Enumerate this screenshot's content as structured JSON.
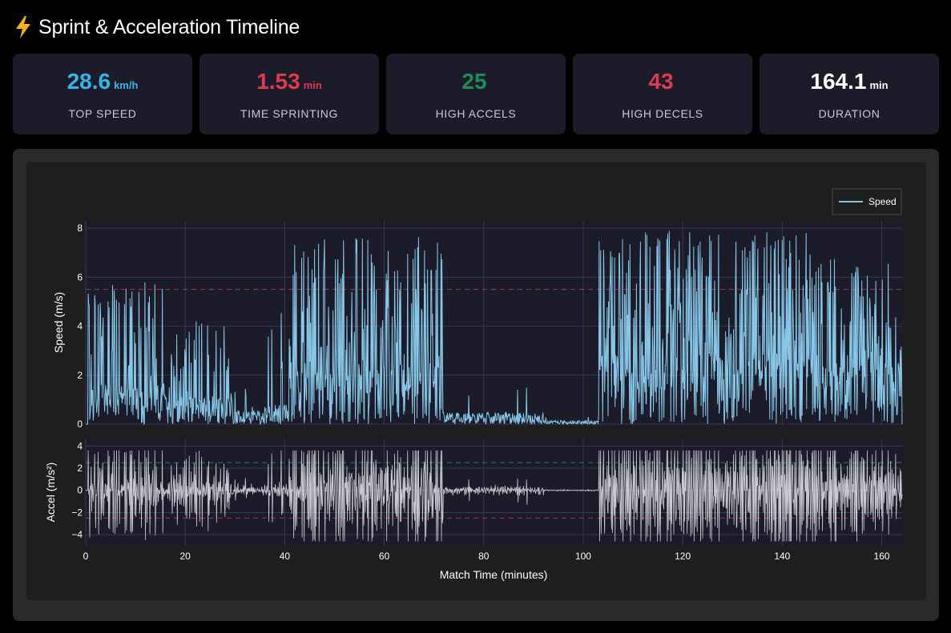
{
  "header": {
    "icon": "lightning-bolt-icon",
    "title": "Sprint & Acceleration Timeline"
  },
  "stats": [
    {
      "value": "28.6",
      "unit": "km/h",
      "label": "TOP SPEED",
      "color": "#35b6e6"
    },
    {
      "value": "1.53",
      "unit": "min",
      "label": "TIME SPRINTING",
      "color": "#dd3b50"
    },
    {
      "value": "25",
      "unit": "",
      "label": "HIGH ACCELS",
      "color": "#1f8b55"
    },
    {
      "value": "43",
      "unit": "",
      "label": "HIGH DECELS",
      "color": "#dd3b50"
    },
    {
      "value": "164.1",
      "unit": "min",
      "label": "DURATION",
      "color": "#ffffff"
    }
  ],
  "chart_data": {
    "type": "line",
    "xlabel": "Match Time (minutes)",
    "xlim": [
      0,
      164.1
    ],
    "x_ticks": [
      0,
      20,
      40,
      60,
      80,
      100,
      120,
      140,
      160
    ],
    "legend": {
      "label": "Speed",
      "placement": "top-right"
    },
    "speed_panel": {
      "ylabel": "Speed (m/s)",
      "ylim": [
        0,
        8.3
      ],
      "y_ticks": [
        0,
        2,
        4,
        6,
        8
      ],
      "sprint_threshold": 5.5,
      "series_color": "#87c6e6",
      "segments": [
        {
          "start": 0.5,
          "end": 16,
          "base": 1.0,
          "peak": 5.9,
          "density": 0.35
        },
        {
          "start": 16,
          "end": 29,
          "base": 0.7,
          "peak": 4.3,
          "density": 0.25
        },
        {
          "start": 29,
          "end": 36,
          "base": 0.35,
          "peak": 1.5,
          "density": 0.05
        },
        {
          "start": 36,
          "end": 41,
          "base": 0.5,
          "peak": 4.6,
          "density": 0.05
        },
        {
          "start": 41,
          "end": 72,
          "base": 1.6,
          "peak": 7.8,
          "density": 0.45
        },
        {
          "start": 72,
          "end": 86,
          "base": 0.3,
          "peak": 1.6,
          "density": 0.02
        },
        {
          "start": 86,
          "end": 92,
          "base": 0.3,
          "peak": 1.5,
          "density": 0.02
        },
        {
          "start": 92,
          "end": 103,
          "base": 0.1,
          "peak": 0.3,
          "density": 0.0
        },
        {
          "start": 103,
          "end": 146,
          "base": 1.8,
          "peak": 7.9,
          "density": 0.5
        },
        {
          "start": 146,
          "end": 164,
          "base": 1.6,
          "peak": 6.8,
          "density": 0.45
        }
      ]
    },
    "accel_panel": {
      "ylabel": "Accel (m/s²)",
      "ylim": [
        -5,
        4.6
      ],
      "y_ticks": [
        -4,
        -2,
        0,
        2,
        4
      ],
      "accel_threshold": 2.5,
      "decel_threshold": -2.5,
      "series_color": "#e6e6ee"
    }
  },
  "colors": {
    "plot_bg": "#1b1b2a",
    "paper_bg": "#1e1e1e",
    "grid": "#383850",
    "sprint_line": "#a8344c",
    "accel_line": "#2f7a55",
    "decel_line": "#a8344c"
  }
}
